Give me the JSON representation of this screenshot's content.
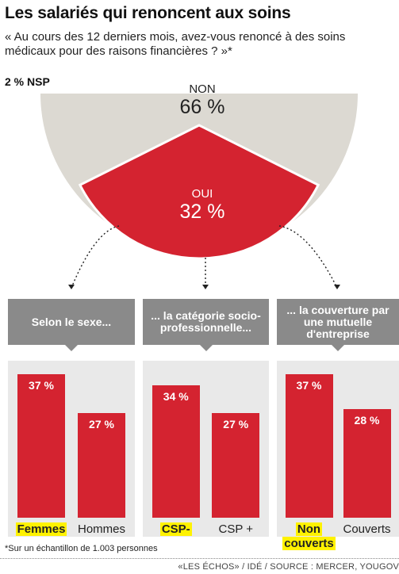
{
  "header": {
    "title": "Les salariés qui renoncent aux soins",
    "subtitle": "« Au cours des 12 derniers mois, avez-vous renoncé à des soins médicaux pour des raisons financières ? »*"
  },
  "chart_data": [
    {
      "type": "pie",
      "slices": [
        {
          "label": "NON",
          "value": 66,
          "display": "66 %",
          "color": "#dcd9d2"
        },
        {
          "label": "OUI",
          "value": 32,
          "display": "32 %",
          "color": "#d42330"
        },
        {
          "label": "NSP",
          "value": 2,
          "display": "2 % NSP",
          "color": "#ffffff"
        }
      ]
    },
    {
      "type": "bar",
      "title": "Selon le sexe...",
      "categories": [
        "Femmes",
        "Hommes"
      ],
      "values": [
        37,
        27
      ],
      "value_labels": [
        "37 %",
        "27 %"
      ],
      "highlighted": [
        true,
        false
      ],
      "color": "#d42330",
      "ylim": [
        0,
        45
      ]
    },
    {
      "type": "bar",
      "title": "... la catégorie socio-professionnelle...",
      "categories": [
        "CSP-",
        "CSP +"
      ],
      "values": [
        34,
        27
      ],
      "value_labels": [
        "34 %",
        "27 %"
      ],
      "highlighted": [
        true,
        false
      ],
      "color": "#d42330",
      "ylim": [
        0,
        45
      ]
    },
    {
      "type": "bar",
      "title": "... la couverture par une mutuelle d'entreprise",
      "categories": [
        "Non couverts",
        "Couverts"
      ],
      "values": [
        37,
        28
      ],
      "value_labels": [
        "37 %",
        "28 %"
      ],
      "highlighted": [
        true,
        false
      ],
      "color": "#d42330",
      "ylim": [
        0,
        45
      ]
    }
  ],
  "footer": {
    "footnote": "*Sur un échantillon de 1.003 personnes",
    "credit": "«LES ÉCHOS» / IDÉ / SOURCE : MERCER, YOUGOV"
  }
}
